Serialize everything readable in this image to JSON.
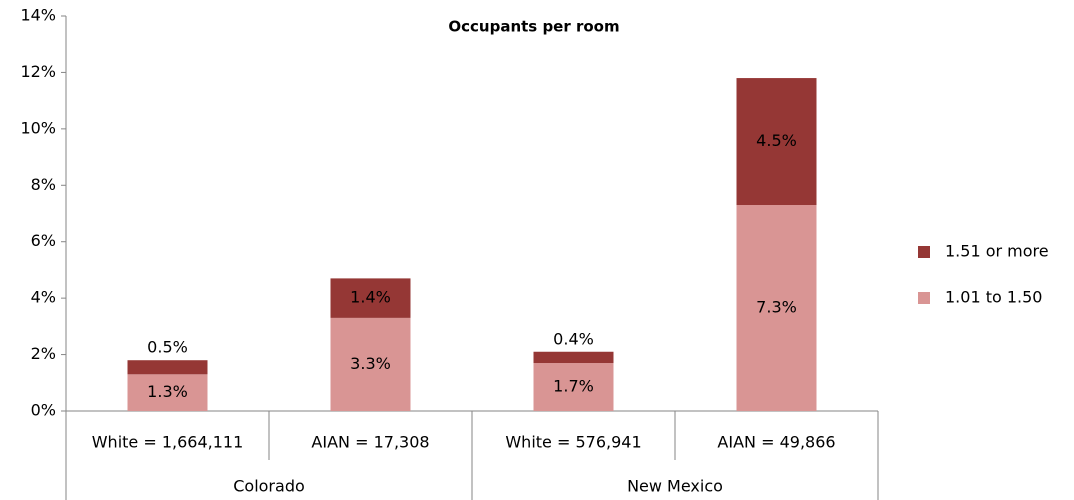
{
  "chart_data": {
    "type": "stacked_bar",
    "title": "Occupants per room",
    "groups": [
      {
        "name": "Colorado",
        "categories": [
          "White = 1,664,111",
          "AIAN = 17,308"
        ]
      },
      {
        "name": "New Mexico",
        "categories": [
          "White = 576,941",
          "AIAN = 49,866"
        ]
      }
    ],
    "series": [
      {
        "name": "1.01 to 1.50",
        "color": "#d99594",
        "values": [
          1.3,
          3.3,
          1.7,
          7.3
        ],
        "value_labels": [
          "1.3%",
          "3.3%",
          "1.7%",
          "7.3%"
        ]
      },
      {
        "name": "1.51 or more",
        "color": "#953735",
        "values": [
          0.5,
          1.4,
          0.4,
          4.5
        ],
        "value_labels": [
          "0.5%",
          "1.4%",
          "0.4%",
          "4.5%"
        ]
      }
    ],
    "ylim": [
      0,
      14
    ],
    "yticks": [
      {
        "value": 0,
        "label": "0%"
      },
      {
        "value": 2,
        "label": "2%"
      },
      {
        "value": 4,
        "label": "4%"
      },
      {
        "value": 6,
        "label": "6%"
      },
      {
        "value": 8,
        "label": "8%"
      },
      {
        "value": 10,
        "label": "10%"
      },
      {
        "value": 12,
        "label": "12%"
      },
      {
        "value": 14,
        "label": "14%"
      }
    ],
    "legend": "right",
    "grid": false
  }
}
